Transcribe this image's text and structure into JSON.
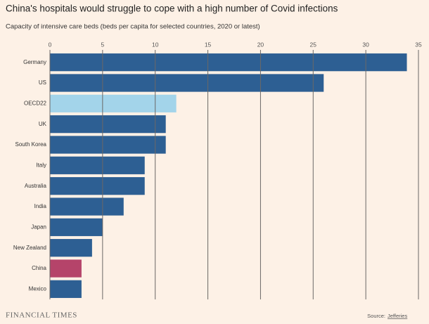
{
  "chart_data": {
    "type": "barh",
    "title": "China's hospitals would struggle to cope with a high number of Covid infections",
    "subtitle": "Capacity of intensive care beds (beds per capita for selected countries, 2020 or latest)",
    "categories": [
      "Germany",
      "US",
      "OECD22",
      "UK",
      "South Korea",
      "Italy",
      "Australia",
      "India",
      "Japan",
      "New Zealand",
      "China",
      "Mexico"
    ],
    "values": [
      33.9,
      26,
      12,
      11,
      11,
      9,
      9,
      7,
      5,
      4,
      3,
      3
    ],
    "colors": [
      "#2d5f93",
      "#2d5f93",
      "#a3d4ea",
      "#2d5f93",
      "#2d5f93",
      "#2d5f93",
      "#2d5f93",
      "#2d5f93",
      "#2d5f93",
      "#2d5f93",
      "#b5446a",
      "#2d5f93"
    ],
    "xlim": [
      0,
      35
    ],
    "xticks": [
      0,
      5,
      10,
      15,
      20,
      25,
      30,
      35
    ],
    "grid": true,
    "publisher": "FINANCIAL TIMES",
    "source_label": "Source:",
    "source": "Jefferies"
  }
}
